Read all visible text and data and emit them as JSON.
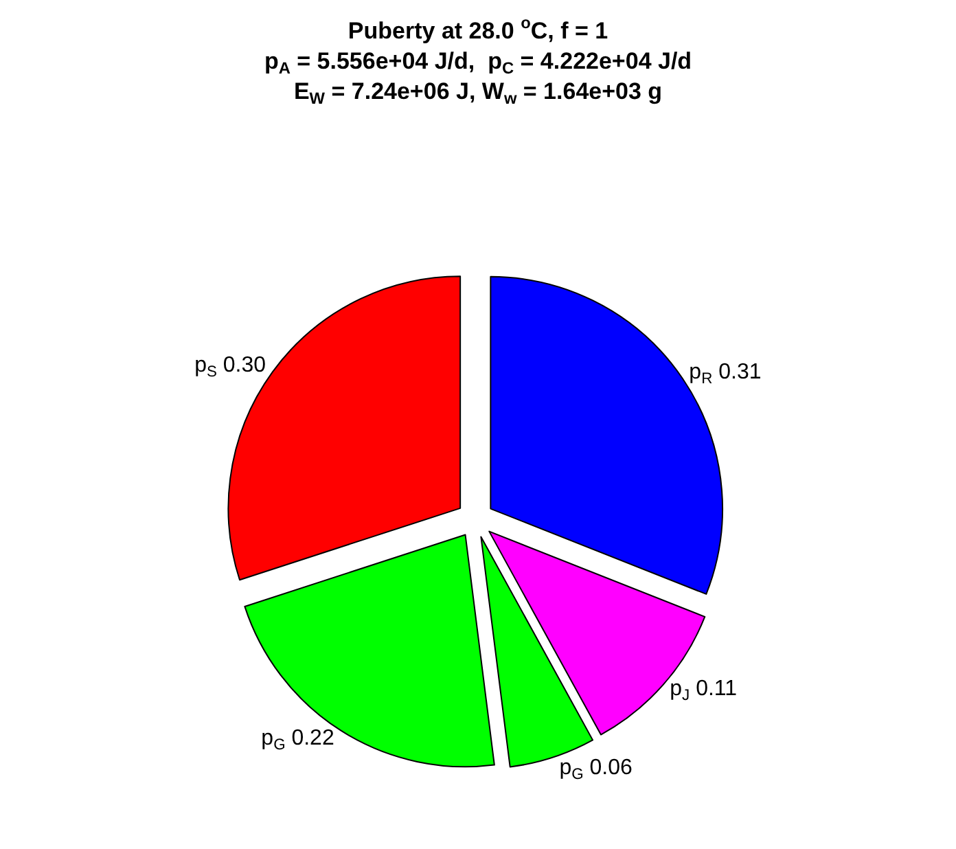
{
  "chart_data": {
    "type": "pie",
    "title": "Puberty at 28.0 $^{o}$C, f = 1\np$_{A}$ = 5.556e+04 J/d,  p$_{C}$ = 4.222e+04 J/d\nE$_{W}$ = 7.24e+06 J, W$_{w}$ = 1.64e+03 g",
    "categories": [
      "p$_{R}$",
      "p$_{J}$",
      "p$_{G}$",
      "p$_{G}$",
      "p$_{S}$"
    ],
    "values": [
      0.31,
      0.11,
      0.06,
      0.22,
      0.3
    ],
    "value_labels": [
      "0.31",
      "0.11",
      "0.06",
      "0.22",
      "0.30"
    ],
    "colors": [
      "#0000ff",
      "#ff00ff",
      "#00ff00",
      "#00ff00",
      "#ff0000"
    ],
    "legend": false
  }
}
